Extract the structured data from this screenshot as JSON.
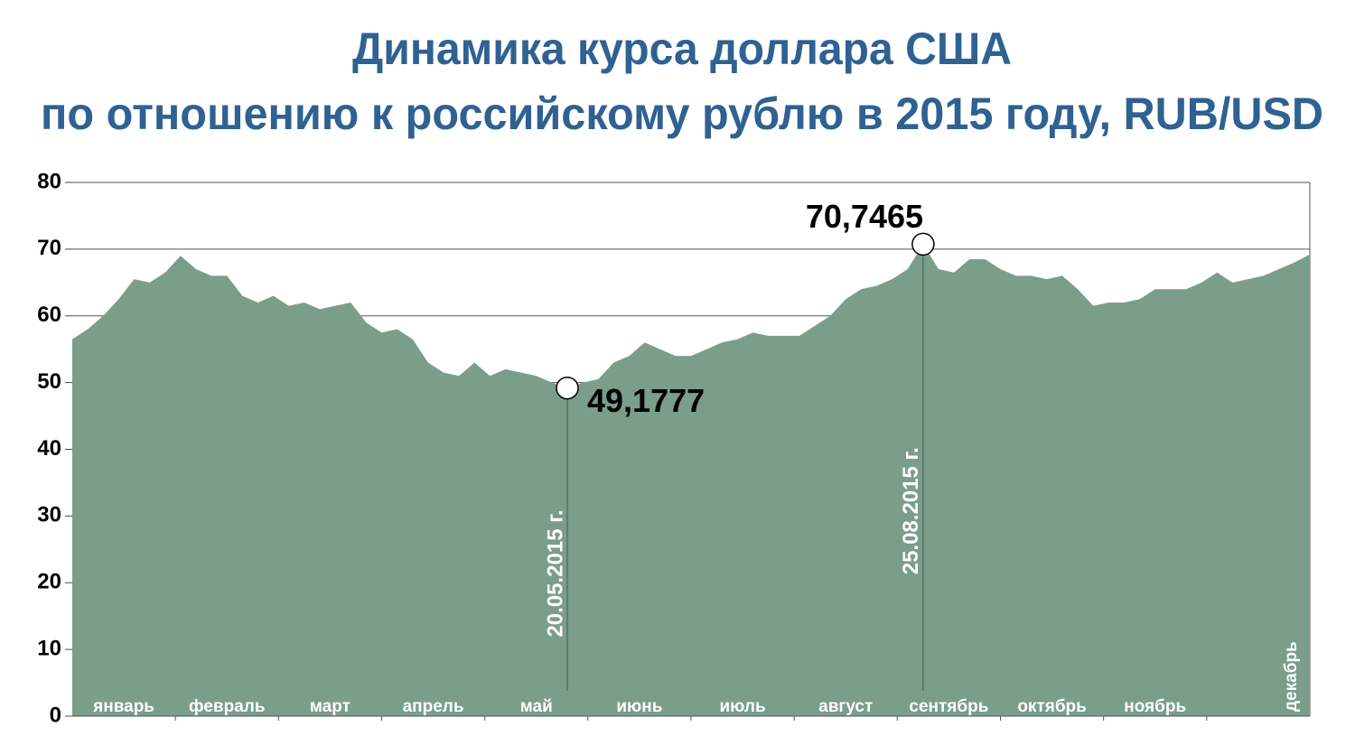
{
  "chart_data": {
    "type": "area",
    "title_lines": [
      "Динамика курса доллара США",
      "по отношению к российскому рублю в 2015 году, RUB/USD"
    ],
    "x_labels": [
      "январь",
      "февраль",
      "март",
      "апрель",
      "май",
      "июнь",
      "июль",
      "август",
      "сентябрь",
      "октябрь",
      "ноябрь",
      "декабрь"
    ],
    "values": [
      56.5,
      58,
      60,
      62.5,
      65.5,
      65,
      66.5,
      69,
      67,
      66,
      66,
      63,
      62,
      63,
      61.5,
      62,
      61,
      61.5,
      62,
      59,
      57.5,
      58,
      56.5,
      53,
      51.5,
      51,
      53,
      51,
      52,
      51.5,
      51,
      50,
      49.1777,
      50,
      50.5,
      53,
      54,
      56,
      55,
      54,
      54,
      55,
      56,
      56.5,
      57.5,
      57,
      57,
      57,
      58.5,
      60,
      62.5,
      64,
      64.5,
      65.5,
      67,
      70.7465,
      67,
      66.5,
      68.5,
      68.5,
      67,
      66,
      66,
      65.5,
      66,
      64,
      61.5,
      62,
      62,
      62.5,
      64,
      64,
      64,
      65,
      66.5,
      65,
      65.5,
      66,
      67,
      68,
      69.2
    ],
    "color": "#7a9e8a",
    "ylim": [
      0,
      80
    ],
    "yticks": [
      0,
      10,
      20,
      30,
      40,
      50,
      60,
      70,
      80
    ],
    "grid": true,
    "annotations": [
      {
        "value": 49.1777,
        "value_label": "49,1777",
        "date": "20.05.2015 г."
      },
      {
        "value": 70.7465,
        "value_label": "70,7465",
        "date": "25.08.2015 г."
      }
    ]
  }
}
